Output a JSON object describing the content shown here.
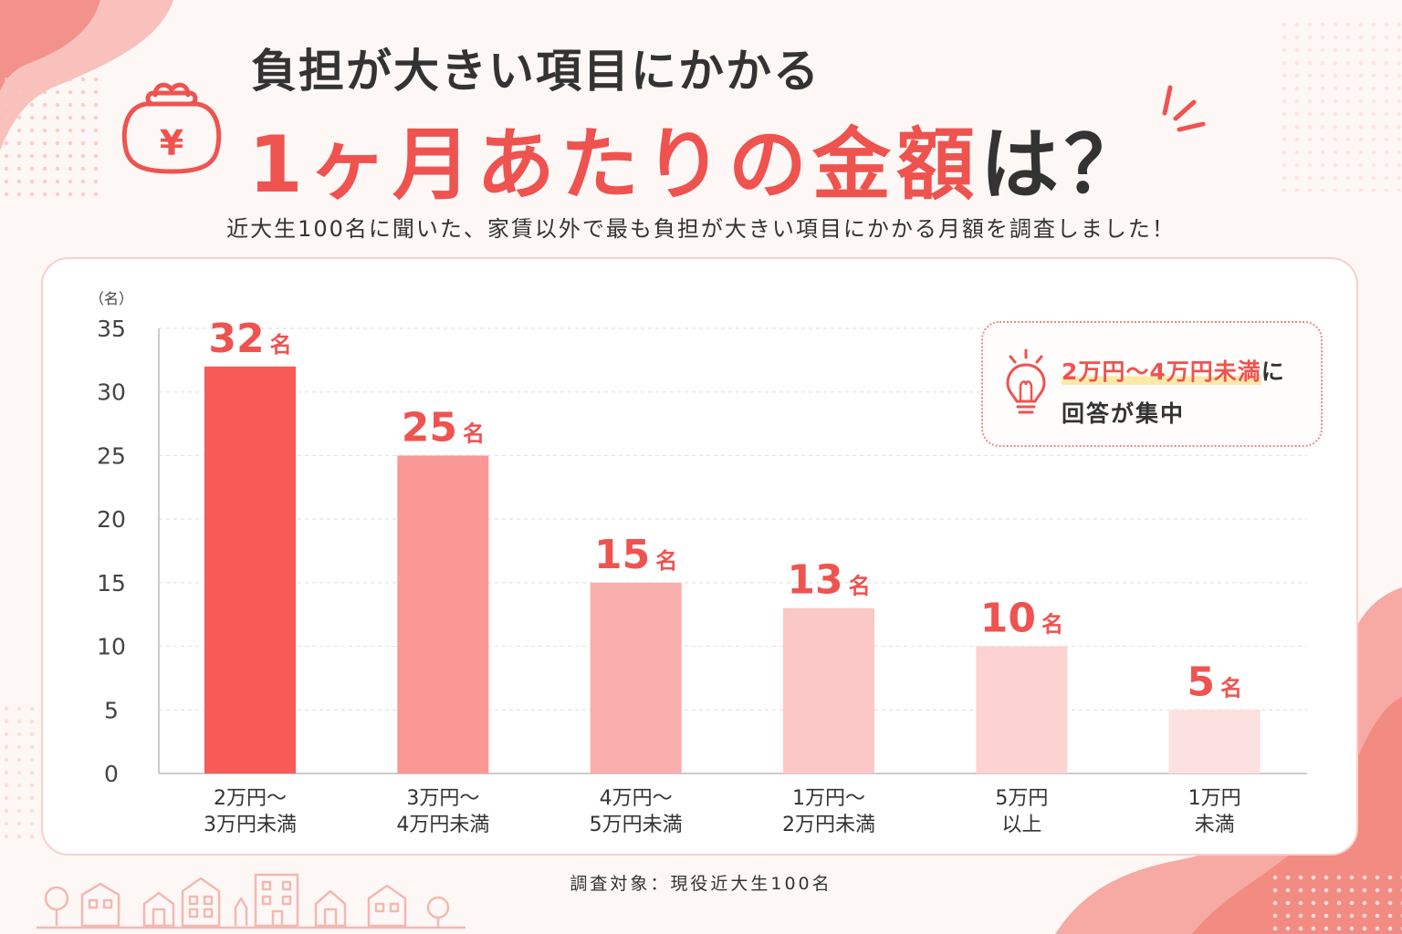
{
  "title": {
    "line1": "負担が大きい項目にかかる",
    "line2_main": "1ヶ月あたりの金額",
    "line2_suffix": "は？"
  },
  "subtitle": "近大生100名に聞いた、家賃以外で最も負担が大きい項目にかかる月額を調査しました！",
  "callout": {
    "highlight": "2万円〜4万円未満",
    "suffix": "に",
    "line2": "回答が集中"
  },
  "footnote": "調査対象：現役近大生100名",
  "icons": {
    "wallet": "yen-wallet-icon",
    "bulb": "lightbulb-icon",
    "spark": "sparkle-lines-icon",
    "wallet_symbol": "¥"
  },
  "colors": {
    "accent": "#ef5350",
    "bar_shades": [
      "#f75a57",
      "#fb9896",
      "#fbaeae",
      "#fcc7c7",
      "#fdd2d2",
      "#fde0e0"
    ]
  },
  "chart_data": {
    "type": "bar",
    "title": "負担が大きい項目にかかる1ヶ月あたりの金額は？",
    "ylabel": "（名）",
    "xlabel": "",
    "ylim": [
      0,
      35
    ],
    "yticks": [
      0,
      5,
      10,
      15,
      20,
      25,
      30,
      35
    ],
    "grid": true,
    "categories": [
      [
        "2万円〜",
        "3万円未満"
      ],
      [
        "3万円〜",
        "4万円未満"
      ],
      [
        "4万円〜",
        "5万円未満"
      ],
      [
        "1万円〜",
        "2万円未満"
      ],
      [
        "5万円",
        "以上"
      ],
      [
        "1万円",
        "未満"
      ]
    ],
    "values": [
      32,
      25,
      15,
      13,
      10,
      5
    ],
    "value_unit": "名"
  }
}
